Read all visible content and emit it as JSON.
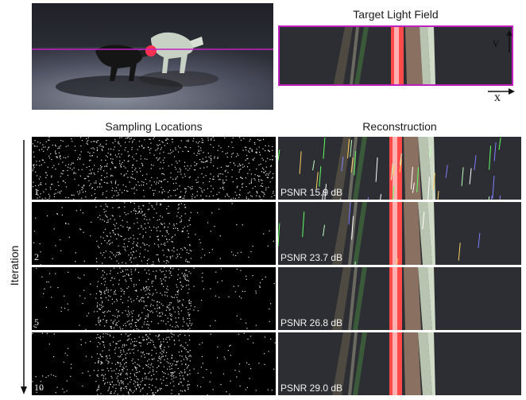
{
  "headings": {
    "target": "Target Light Field",
    "sampling": "Sampling Locations",
    "reconstruction": "Reconstruction"
  },
  "axes": {
    "v_label": "v",
    "x_label": "x",
    "y_side_label": "Iteration"
  },
  "rows": [
    {
      "iteration": "1",
      "psnr": "PSNR 15.9 dB",
      "density": 1.0
    },
    {
      "iteration": "2",
      "psnr": "PSNR 23.7 dB",
      "density": 0.45
    },
    {
      "iteration": "5",
      "psnr": "PSNR 26.8 dB",
      "density": 0.6
    },
    {
      "iteration": "10",
      "psnr": "PSNR 29.0 dB",
      "density": 0.7
    }
  ],
  "colors": {
    "highlight_line": "#c020c0",
    "red_stripe": "#ff4a4a",
    "background": "#2c2e34"
  }
}
